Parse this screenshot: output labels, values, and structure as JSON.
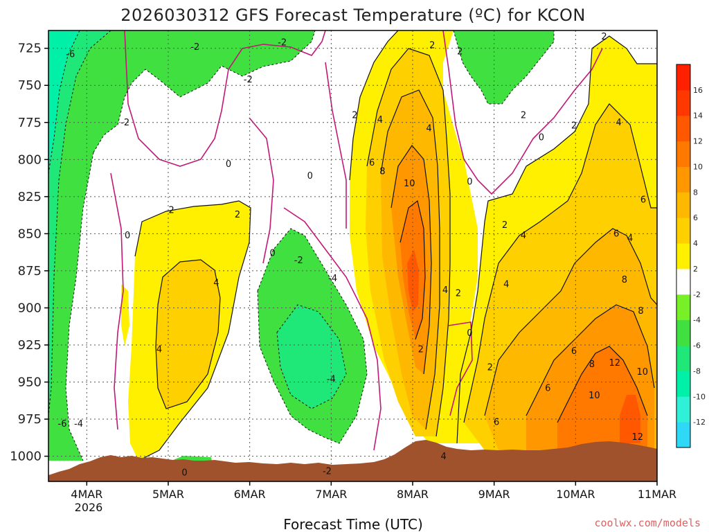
{
  "chart_data": {
    "type": "heatmap",
    "title": "2026030312 GFS Forecast Temperature (ºC) for KCON",
    "xlabel": "Forecast Time (UTC)",
    "ylabel": "",
    "credit": "coolwx.com/models",
    "x_ticks": [
      "4MAR",
      "5MAR",
      "6MAR",
      "7MAR",
      "8MAR",
      "9MAR",
      "10MAR",
      "11MAR"
    ],
    "x_year_label": "2026",
    "xlim_days_from_4mar": [
      -0.47,
      7.0
    ],
    "y_ticks": [
      725,
      750,
      775,
      800,
      825,
      850,
      875,
      900,
      925,
      950,
      975,
      1000
    ],
    "ylim_hpa": [
      713,
      1017
    ],
    "y_inverted": true,
    "colorbar": {
      "levels": [
        -14,
        -12,
        -10,
        -8,
        -6,
        -4,
        -2,
        2,
        4,
        6,
        8,
        10,
        12,
        14,
        16,
        18
      ],
      "tick_labels": [
        "-12",
        "-10",
        "-8",
        "-6",
        "-4",
        "-2",
        "2",
        "4",
        "6",
        "8",
        "10",
        "12",
        "14",
        "16"
      ],
      "colors": [
        "#30d8f8",
        "#30f0d8",
        "#00f0a8",
        "#20e878",
        "#40e040",
        "#78f028",
        "#ffffff",
        "#fff000",
        "#ffd000",
        "#ffb800",
        "#ff9800",
        "#ff7800",
        "#ff5800",
        "#ff3800",
        "#ff2000"
      ]
    },
    "contour_labels": [
      {
        "text": "-6",
        "t": -0.2,
        "p": 731
      },
      {
        "text": "-2",
        "t": 0.47,
        "p": 777
      },
      {
        "text": "-2",
        "t": 1.33,
        "p": 726
      },
      {
        "text": "-2",
        "t": 1.98,
        "p": 748
      },
      {
        "text": "-2",
        "t": 2.4,
        "p": 723
      },
      {
        "text": "0",
        "t": 0.5,
        "p": 853
      },
      {
        "text": "0",
        "t": 1.74,
        "p": 805
      },
      {
        "text": "0",
        "t": 2.28,
        "p": 865
      },
      {
        "text": "0",
        "t": 2.74,
        "p": 813
      },
      {
        "text": "0",
        "t": 4.7,
        "p": 817
      },
      {
        "text": "0",
        "t": 5.58,
        "p": 787
      },
      {
        "text": "0",
        "t": 4.7,
        "p": 919
      },
      {
        "text": "2",
        "t": 1.04,
        "p": 836
      },
      {
        "text": "2",
        "t": 1.85,
        "p": 839
      },
      {
        "text": "2",
        "t": 3.29,
        "p": 772
      },
      {
        "text": "2",
        "t": 4.24,
        "p": 725
      },
      {
        "text": "2",
        "t": 4.58,
        "p": 729
      },
      {
        "text": "2",
        "t": 5.13,
        "p": 846
      },
      {
        "text": "2",
        "t": 5.36,
        "p": 772
      },
      {
        "text": "2",
        "t": 5.98,
        "p": 779
      },
      {
        "text": "2",
        "t": 6.35,
        "p": 719
      },
      {
        "text": "2",
        "t": 4.95,
        "p": 942
      },
      {
        "text": "2",
        "t": 4.56,
        "p": 892
      },
      {
        "text": "2",
        "t": 4.1,
        "p": 930
      },
      {
        "text": "4",
        "t": 0.89,
        "p": 930
      },
      {
        "text": "4",
        "t": 1.59,
        "p": 885
      },
      {
        "text": "4",
        "t": 3.6,
        "p": 775
      },
      {
        "text": "4",
        "t": 4.2,
        "p": 781
      },
      {
        "text": "4",
        "t": 4.4,
        "p": 890
      },
      {
        "text": "4",
        "t": 5.36,
        "p": 853
      },
      {
        "text": "4",
        "t": 5.15,
        "p": 886
      },
      {
        "text": "4",
        "t": 6.53,
        "p": 777
      },
      {
        "text": "4",
        "t": 6.67,
        "p": 855
      },
      {
        "text": "4",
        "t": 4.38,
        "p": 1002
      },
      {
        "text": "6",
        "t": 3.5,
        "p": 804
      },
      {
        "text": "6",
        "t": 5.03,
        "p": 979
      },
      {
        "text": "6",
        "t": 5.66,
        "p": 956
      },
      {
        "text": "6",
        "t": 5.98,
        "p": 931
      },
      {
        "text": "6",
        "t": 6.5,
        "p": 852
      },
      {
        "text": "6",
        "t": 6.83,
        "p": 829
      },
      {
        "text": "8",
        "t": 3.63,
        "p": 810
      },
      {
        "text": "8",
        "t": 6.2,
        "p": 940
      },
      {
        "text": "8",
        "t": 6.6,
        "p": 883
      },
      {
        "text": "8",
        "t": 6.8,
        "p": 904
      },
      {
        "text": "10",
        "t": 3.96,
        "p": 818
      },
      {
        "text": "10",
        "t": 6.23,
        "p": 961
      },
      {
        "text": "10",
        "t": 6.82,
        "p": 945
      },
      {
        "text": "12",
        "t": 6.48,
        "p": 939
      },
      {
        "text": "12",
        "t": 6.76,
        "p": 989
      },
      {
        "text": "-4",
        "t": 3.02,
        "p": 882
      },
      {
        "text": "-4",
        "t": 3.0,
        "p": 950
      },
      {
        "text": "-2",
        "t": 2.95,
        "p": 1012
      },
      {
        "text": "-6",
        "t": -0.3,
        "p": 980
      },
      {
        "text": "-4",
        "t": -0.1,
        "p": 980
      },
      {
        "text": "0",
        "t": 1.2,
        "p": 1013
      },
      {
        "text": "-2",
        "t": 2.6,
        "p": 870
      }
    ]
  }
}
